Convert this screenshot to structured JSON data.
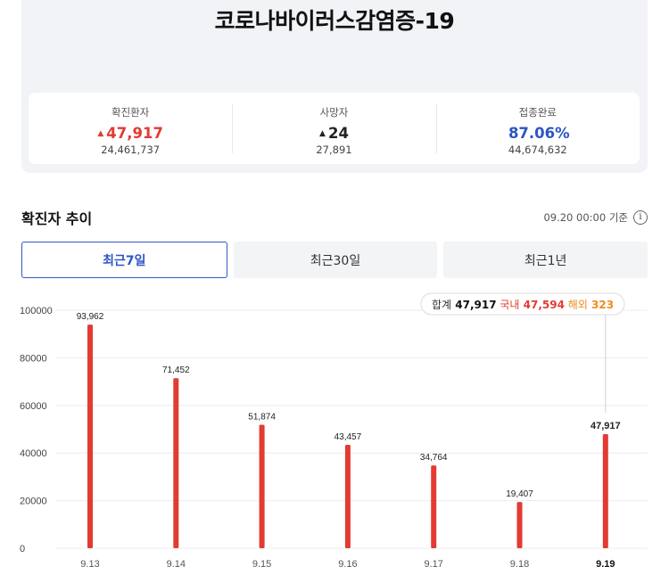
{
  "title": "코로나바이러스감염증-19",
  "stats": [
    {
      "label": "확진환자",
      "arrow": "▲",
      "value": "47,917",
      "sub": "24,461,737",
      "color": "#e23b32",
      "arrow_color": "#e23b32"
    },
    {
      "label": "사망자",
      "arrow": "▲",
      "value": "24",
      "sub": "27,891",
      "color": "#222222",
      "arrow_color": "#222222"
    },
    {
      "label": "접종완료",
      "arrow": "",
      "value": "87.06%",
      "sub": "44,674,632",
      "color": "#2d55c5",
      "arrow_color": "#2d55c5"
    }
  ],
  "section": {
    "title": "확진자 추이",
    "date_ref": "09.20 00:00 기준",
    "info_icon": "info-icon"
  },
  "tabs": [
    {
      "label": "최근7일",
      "active": true
    },
    {
      "label": "최근30일",
      "active": false
    },
    {
      "label": "최근1년",
      "active": false
    }
  ],
  "tooltip": {
    "total_label": "합계",
    "total": "47,917",
    "domestic_label": "국내",
    "domestic": "47,594",
    "overseas_label": "해외",
    "overseas": "323"
  },
  "chart_data": {
    "type": "bar",
    "categories": [
      "9.13",
      "9.14",
      "9.15",
      "9.16",
      "9.17",
      "9.18",
      "9.19"
    ],
    "values": [
      93962,
      71452,
      51874,
      43457,
      34764,
      19407,
      47917
    ],
    "value_labels": [
      "93,962",
      "71,452",
      "51,874",
      "43,457",
      "34,764",
      "19,407",
      "47,917"
    ],
    "ylim": [
      0,
      100000
    ],
    "yticks": [
      0,
      20000,
      40000,
      60000,
      80000,
      100000
    ],
    "highlight_index": 6,
    "bar_color": "#e23b32",
    "grid": true
  }
}
